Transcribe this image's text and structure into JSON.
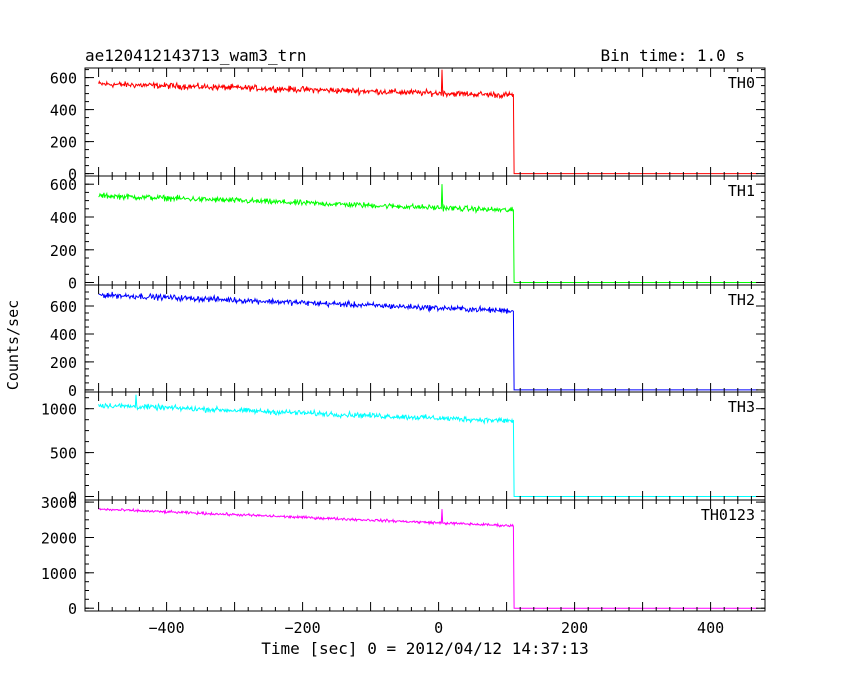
{
  "chart_data": {
    "type": "line",
    "title_left": "ae120412143713_wam3_trn",
    "title_right": "Bin time: 1.0 s",
    "xlabel": "Time [sec] 0 = 2012/04/12 14:37:13",
    "ylabel": "Counts/sec",
    "xlim": [
      -520,
      480
    ],
    "x_ticks": [
      -400,
      -200,
      0,
      200,
      400
    ],
    "x_tick_labels": [
      "−400",
      "−200",
      "0",
      "200",
      "400"
    ],
    "grid": false,
    "panels": [
      {
        "name": "TH0",
        "color": "#ff0000",
        "ylim": [
          -15,
          660
        ],
        "y_ticks": [
          0,
          200,
          400,
          600
        ],
        "y_tick_labels": [
          "0",
          "200",
          "400",
          "600"
        ],
        "x_start": -500,
        "x_drop": 110,
        "x_end": 470,
        "level_start": 560,
        "level_end": 490,
        "noise": 28,
        "level_after": 0,
        "spikes": [
          {
            "x": 5,
            "y": 650
          }
        ]
      },
      {
        "name": "TH1",
        "color": "#00ff00",
        "ylim": [
          -15,
          650
        ],
        "y_ticks": [
          0,
          200,
          400,
          600
        ],
        "y_tick_labels": [
          "0",
          "200",
          "400",
          "600"
        ],
        "x_start": -500,
        "x_drop": 110,
        "x_end": 470,
        "level_start": 530,
        "level_end": 440,
        "noise": 25,
        "level_after": 0,
        "spikes": [
          {
            "x": 5,
            "y": 600
          }
        ]
      },
      {
        "name": "TH2",
        "color": "#0000ff",
        "ylim": [
          -15,
          750
        ],
        "y_ticks": [
          0,
          200,
          400,
          600
        ],
        "y_tick_labels": [
          "0",
          "200",
          "400",
          "600"
        ],
        "x_start": -500,
        "x_drop": 110,
        "x_end": 470,
        "level_start": 680,
        "level_end": 565,
        "noise": 30,
        "level_after": 0,
        "spikes": []
      },
      {
        "name": "TH3",
        "color": "#00ffff",
        "ylim": [
          -40,
          1190
        ],
        "y_ticks": [
          0,
          500,
          1000
        ],
        "y_tick_labels": [
          "0",
          "500",
          "1000"
        ],
        "x_start": -500,
        "x_drop": 110,
        "x_end": 470,
        "level_start": 1040,
        "level_end": 860,
        "noise": 45,
        "level_after": 0,
        "spikes": [
          {
            "x": -445,
            "y": 1160
          }
        ]
      },
      {
        "name": "TH0123",
        "color": "#ff00ff",
        "ylim": [
          -80,
          3060
        ],
        "y_ticks": [
          0,
          1000,
          2000,
          3000
        ],
        "y_tick_labels": [
          "0",
          "1000",
          "2000",
          "3000"
        ],
        "x_start": -500,
        "x_drop": 110,
        "x_end": 470,
        "level_start": 2800,
        "level_end": 2330,
        "noise": 55,
        "level_after": 0,
        "spikes": [
          {
            "x": 5,
            "y": 2800
          }
        ]
      }
    ]
  }
}
